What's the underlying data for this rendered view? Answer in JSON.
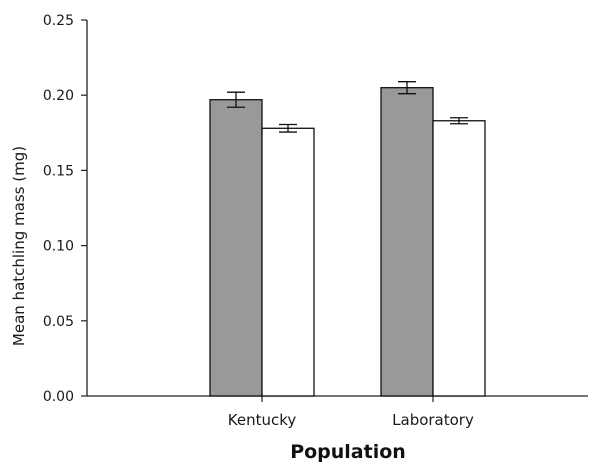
{
  "chart_data": {
    "type": "bar",
    "title": "",
    "xlabel": "Population",
    "ylabel": "Mean hatchling mass (mg)",
    "categories": [
      "Kentucky",
      "Laboratory"
    ],
    "series": [
      {
        "values": [
          0.197,
          0.205
        ],
        "errors": [
          0.005,
          0.004
        ],
        "color": "#999999"
      },
      {
        "values": [
          0.178,
          0.183
        ],
        "errors": [
          0.0025,
          0.002
        ],
        "color": "#ffffff"
      }
    ],
    "ylim": [
      0,
      0.25
    ],
    "yticks": [
      "0.00",
      "0.05",
      "0.10",
      "0.15",
      "0.20",
      "0.25"
    ],
    "grid": false,
    "legend": "none"
  }
}
